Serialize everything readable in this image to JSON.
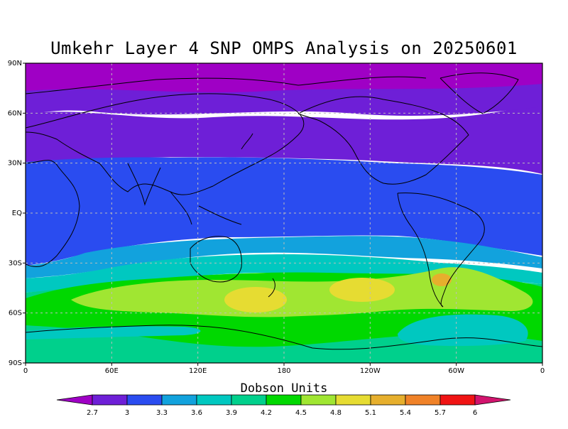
{
  "title": "Umkehr Layer 4 SNP OMPS Analysis on 20250601",
  "colorbar": {
    "title": "Dobson Units",
    "ticks": [
      "2.7",
      "3",
      "3.3",
      "3.6",
      "3.9",
      "4.2",
      "4.5",
      "4.8",
      "5.1",
      "5.4",
      "5.7",
      "6"
    ],
    "colors": [
      "#9f00c5",
      "#6e1fd7",
      "#2a4cf0",
      "#12a2dd",
      "#00c8c0",
      "#00d08c",
      "#00d800",
      "#a0e632",
      "#e6dc32",
      "#e6af2d",
      "#f08228",
      "#f01414",
      "#d2146e"
    ]
  },
  "chart_data": {
    "type": "heatmap",
    "title": "Umkehr Layer 4 SNP OMPS Analysis on 20250601",
    "units": "Dobson Units",
    "x_ticks": [
      "0",
      "60E",
      "120E",
      "180",
      "120W",
      "60W",
      "0"
    ],
    "y_ticks": [
      "90N",
      "60N",
      "30N",
      "EQ",
      "30S",
      "60S",
      "90S"
    ],
    "xlim": [
      0,
      360
    ],
    "ylim": [
      -90,
      90
    ],
    "grid": true,
    "levels": [
      2.7,
      3,
      3.3,
      3.6,
      3.9,
      4.2,
      4.5,
      4.8,
      5.1,
      5.4,
      5.7,
      6
    ],
    "zonal_bands": [
      {
        "lat_from": 90,
        "lat_to": 68,
        "value_range": "below 2.7"
      },
      {
        "lat_from": 68,
        "lat_to": 30,
        "value_range": "2.7-3"
      },
      {
        "lat_from": 30,
        "lat_to": -15,
        "value_range": "3-3.3"
      },
      {
        "lat_from": -15,
        "lat_to": -22,
        "value_range": "3.3-3.6"
      },
      {
        "lat_from": -22,
        "lat_to": -30,
        "value_range": "3.6-3.9"
      },
      {
        "lat_from": -30,
        "lat_to": -38,
        "value_range": "3.9-4.2"
      },
      {
        "lat_from": -38,
        "lat_to": -48,
        "value_range": "4.2-4.5"
      },
      {
        "lat_from": -48,
        "lat_to": -58,
        "value_range": "4.5-4.8"
      },
      {
        "lat_from": -58,
        "lat_to": -72,
        "value_range": "4.2-4.5"
      },
      {
        "lat_from": -72,
        "lat_to": -90,
        "value_range": "3.9-4.2"
      }
    ],
    "maxima": [
      {
        "lon": 180,
        "lat": -50,
        "value_range": "4.8-5.1"
      },
      {
        "lon": 240,
        "lat": -45,
        "value_range": "4.8-5.1"
      },
      {
        "lon": 300,
        "lat": -40,
        "value_range": "5.1-5.4"
      }
    ]
  }
}
